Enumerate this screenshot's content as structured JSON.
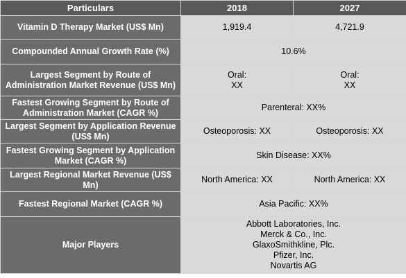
{
  "header": {
    "particulars": "Particulars",
    "year1": "2018",
    "year2": "2027"
  },
  "rows": [
    {
      "label": "Vitamin D Therapy Market (US$ Mn)",
      "v2018": "1,919.4",
      "v2027": "4,721.9"
    },
    {
      "label": "Compounded Annual Growth Rate (%)",
      "value": "10.6%"
    },
    {
      "label": "Largest Segment by Route of Administration Market Revenue (US$ Mn)",
      "v2018": "Oral:\nXX",
      "v2027": "Oral:\nXX"
    },
    {
      "label": "Fastest Growing Segment by Route of Administration Market (CAGR %)",
      "value": "Parenteral:  XX%"
    },
    {
      "label": "Largest Segment by Application Revenue (US$ Mn)",
      "v2018": "Osteoporosis: XX",
      "v2027": "Osteoporosis:  XX"
    },
    {
      "label": "Fastest Growing Segment by Application Market (CAGR %)",
      "value": "Skin Disease:  XX%"
    },
    {
      "label": "Largest Regional Market Revenue (US$ Mn)",
      "v2018": "North America: XX",
      "v2027": "North America: XX"
    },
    {
      "label": "Fastest Regional Market (CAGR %)",
      "value": "Asia Pacific: XX%"
    },
    {
      "label": "Major Players",
      "players": [
        "Abbott Laboratories, Inc.",
        "Merck & Co., Inc.",
        "GlaxoSmithkline, Plc.",
        "Pfizer, Inc.",
        "Novartis AG"
      ]
    }
  ],
  "colors": {
    "header_bg": "#595959",
    "label_bg": "#6b6b6b",
    "value_bg": "#d9d9d9",
    "border": "#d4d4d4"
  }
}
